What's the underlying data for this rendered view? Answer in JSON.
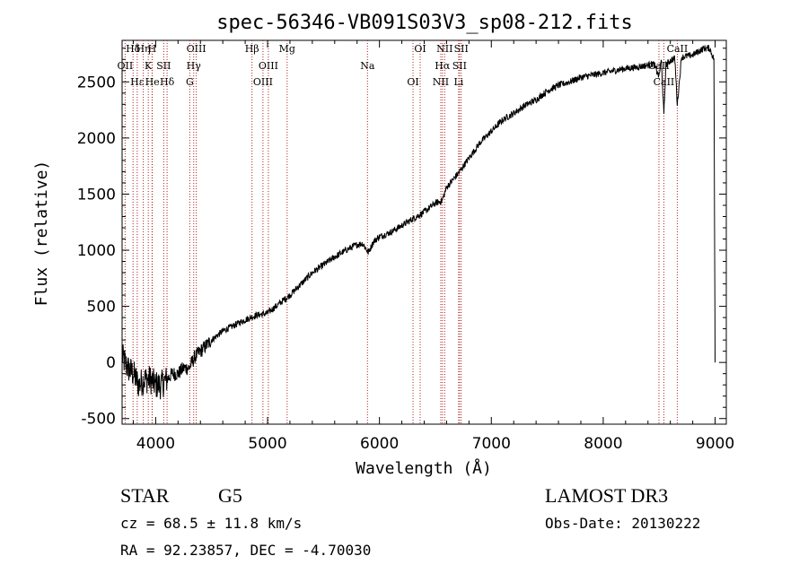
{
  "chart_data": {
    "type": "line",
    "title": "spec-56346-VB091S03V3_sp08-212.fits",
    "xlabel": "Wavelength (Å)",
    "ylabel": "Flux (relative)",
    "xlim": [
      3700,
      9100
    ],
    "ylim": [
      -550,
      2870
    ],
    "xticks": [
      4000,
      5000,
      6000,
      7000,
      8000,
      9000
    ],
    "yticks": [
      -500,
      0,
      500,
      1000,
      1500,
      2000,
      2500
    ],
    "series": [
      {
        "name": "flux",
        "anchors_x": [
          3700,
          3750,
          3800,
          3850,
          3900,
          3950,
          4000,
          4050,
          4100,
          4150,
          4200,
          4250,
          4300,
          4350,
          4400,
          4500,
          4600,
          4700,
          4800,
          4900,
          5000,
          5100,
          5200,
          5300,
          5400,
          5500,
          5600,
          5700,
          5800,
          5850,
          5900,
          5950,
          6000,
          6100,
          6200,
          6300,
          6400,
          6500,
          6560,
          6600,
          6700,
          6800,
          6900,
          7000,
          7100,
          7200,
          7300,
          7400,
          7500,
          7600,
          7700,
          7800,
          7900,
          8000,
          8100,
          8200,
          8300,
          8400,
          8450,
          8498,
          8520,
          8542,
          8560,
          8600,
          8640,
          8662,
          8700,
          8750,
          8800,
          8850,
          8900,
          8950,
          8990,
          8995,
          9000
        ],
        "anchors_y": [
          50,
          -50,
          -100,
          -200,
          -150,
          -150,
          -200,
          -200,
          -150,
          -100,
          -100,
          -50,
          -50,
          50,
          100,
          200,
          280,
          330,
          380,
          420,
          440,
          520,
          600,
          700,
          800,
          870,
          940,
          1000,
          1050,
          1060,
          980,
          1080,
          1120,
          1160,
          1220,
          1280,
          1340,
          1420,
          1440,
          1560,
          1680,
          1820,
          1960,
          2060,
          2160,
          2220,
          2290,
          2340,
          2420,
          2470,
          2500,
          2540,
          2560,
          2580,
          2600,
          2620,
          2630,
          2650,
          2660,
          2550,
          2700,
          2200,
          2650,
          2690,
          2710,
          2300,
          2720,
          2730,
          2740,
          2770,
          2800,
          2800,
          2700,
          1200,
          0
        ]
      }
    ],
    "lines": [
      {
        "label": "Hδ",
        "x": 3798
      },
      {
        "label": "OII",
        "x": 3727
      },
      {
        "label": "Hε",
        "x": 3835
      },
      {
        "label": "Hη",
        "x": 3889
      },
      {
        "label": "K",
        "x": 3934
      },
      {
        "label": "He",
        "x": 3970
      },
      {
        "label": "H",
        "x": 3968
      },
      {
        "label": "SII",
        "x": 4072
      },
      {
        "label": "Hδ",
        "x": 4102
      },
      {
        "label": "OIII",
        "x": 4363
      },
      {
        "label": "Hγ",
        "x": 4340
      },
      {
        "label": "G",
        "x": 4305
      },
      {
        "label": "Hβ",
        "x": 4861
      },
      {
        "label": "OIII",
        "x": 5007
      },
      {
        "label": "OIII",
        "x": 4959
      },
      {
        "label": "Mg",
        "x": 5175
      },
      {
        "label": "Na",
        "x": 5893
      },
      {
        "label": "OI",
        "x": 6300
      },
      {
        "label": "OI",
        "x": 6364
      },
      {
        "label": "Hα",
        "x": 6563
      },
      {
        "label": "NII",
        "x": 6548
      },
      {
        "label": "NII",
        "x": 6583
      },
      {
        "label": "SII",
        "x": 6716
      },
      {
        "label": "Li",
        "x": 6708
      },
      {
        "label": "SII",
        "x": 6731
      },
      {
        "label": "CaII",
        "x": 8498
      },
      {
        "label": "CaII",
        "x": 8542
      },
      {
        "label": "CaII",
        "x": 8662
      }
    ]
  },
  "info": {
    "object_class": "STAR",
    "subclass": "G5",
    "survey": "LAMOST DR3",
    "redshift": "cz = 68.5 ± 11.8 km/s",
    "obs_date": "Obs-Date: 20130222",
    "coords": "RA =  92.23857, DEC =  -4.70030"
  }
}
